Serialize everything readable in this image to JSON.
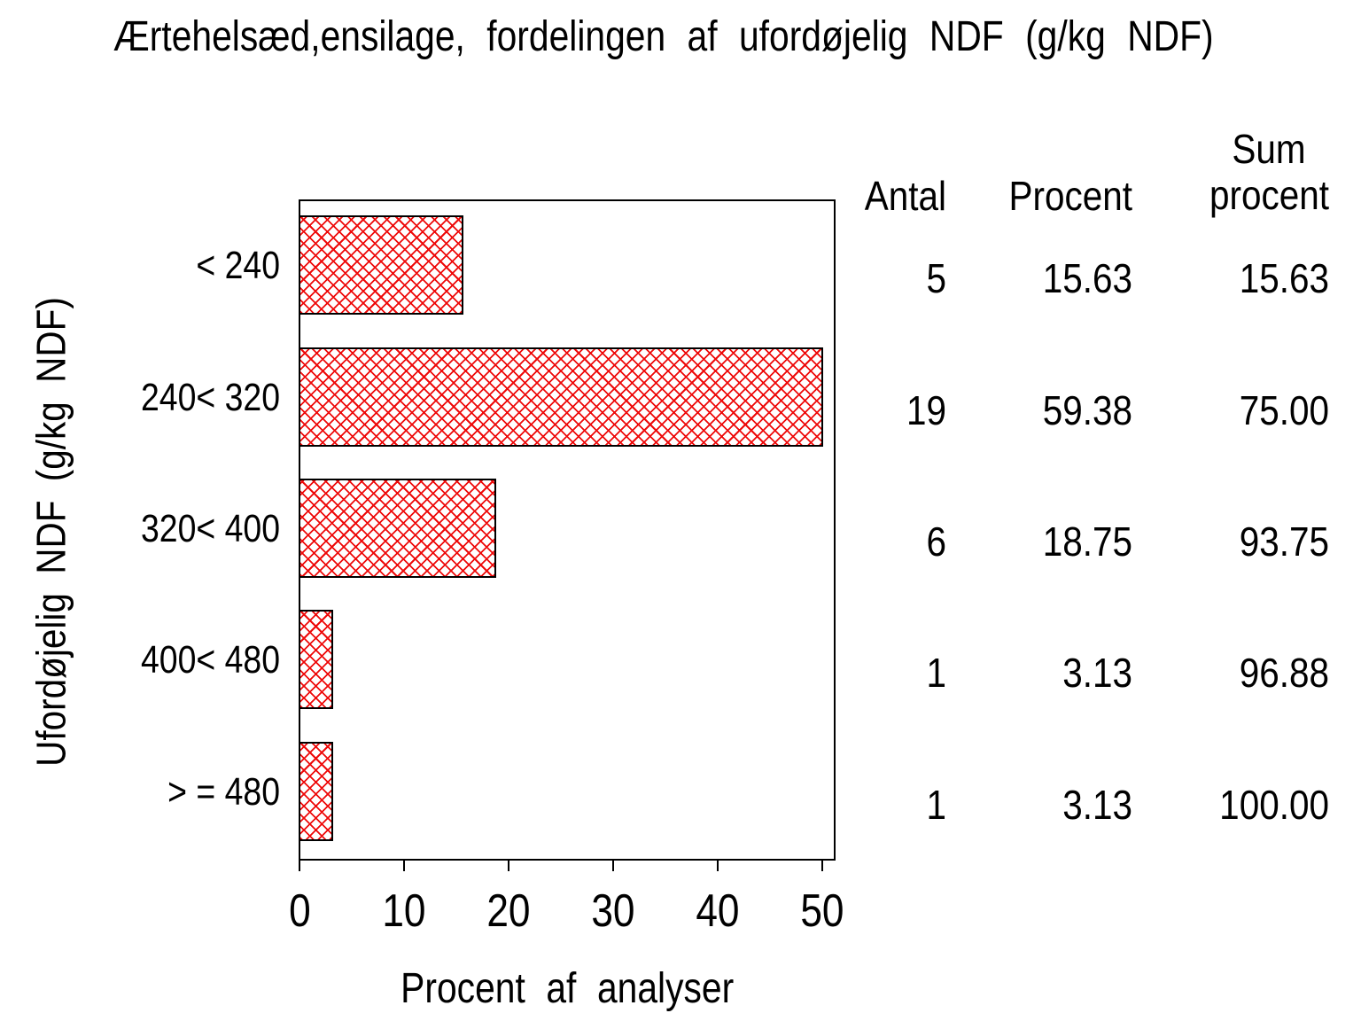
{
  "title": "Ærtehelsæd,ensilage, fordelingen af ufordøjelig NDF (g/kg NDF)",
  "y_axis_label": "Ufordøjelig NDF (g/kg NDF)",
  "x_axis_label": "Procent af analyser",
  "table": {
    "headers": {
      "antal": "Antal",
      "procent": "Procent",
      "sum_line1": "Sum",
      "sum_line2": "procent"
    },
    "rows": [
      {
        "antal": "5",
        "procent": "15.63",
        "sum_procent": "15.63"
      },
      {
        "antal": "19",
        "procent": "59.38",
        "sum_procent": "75.00"
      },
      {
        "antal": "6",
        "procent": "18.75",
        "sum_procent": "93.75"
      },
      {
        "antal": "1",
        "procent": "3.13",
        "sum_procent": "96.88"
      },
      {
        "antal": "1",
        "procent": "3.13",
        "sum_procent": "100.00"
      }
    ]
  },
  "chart_data": {
    "type": "bar",
    "orientation": "horizontal",
    "title": "Ærtehelsæd,ensilage, fordelingen af ufordøjelig NDF (g/kg NDF)",
    "categories": [
      "< 240",
      "240< 320",
      "320< 400",
      "400< 480",
      "> = 480"
    ],
    "series": [
      {
        "name": "Procent af analyser",
        "values": [
          15.63,
          59.38,
          18.75,
          3.13,
          3.13
        ]
      }
    ],
    "counts": [
      5,
      19,
      6,
      1,
      1
    ],
    "cum_percent": [
      15.63,
      75.0,
      93.75,
      96.88,
      100.0
    ],
    "xlabel": "Procent af analyser",
    "ylabel": "Ufordøjelig NDF (g/kg NDF)",
    "xlim": [
      0,
      50
    ],
    "x_ticks": [
      0,
      10,
      20,
      30,
      40,
      50
    ],
    "bars_clipped_at_axis_max": true,
    "grid": false,
    "bar_pattern": "red-crosshatch",
    "bar_pattern_color": "#ee0a0a",
    "frame_color": "#000000",
    "background_color": "#ffffff"
  }
}
